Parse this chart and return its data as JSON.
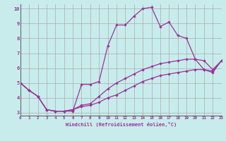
{
  "xlabel": "Windchill (Refroidissement éolien,°C)",
  "xlim": [
    0,
    23
  ],
  "ylim": [
    2.8,
    10.3
  ],
  "yticks": [
    3,
    4,
    5,
    6,
    7,
    8,
    9,
    10
  ],
  "xticks": [
    0,
    1,
    2,
    3,
    4,
    5,
    6,
    7,
    8,
    9,
    10,
    11,
    12,
    13,
    14,
    15,
    16,
    17,
    18,
    19,
    20,
    21,
    22,
    23
  ],
  "background_color": "#c8ecec",
  "line_color": "#993399",
  "grid_color": "#aaaaaa",
  "lines": [
    {
      "x": [
        0,
        1,
        2,
        3,
        4,
        5,
        6,
        7,
        8,
        9,
        10,
        11,
        12,
        13,
        14,
        15,
        16,
        17,
        18,
        19,
        20,
        21,
        22,
        23
      ],
      "y": [
        5.0,
        4.5,
        4.1,
        3.2,
        3.1,
        3.1,
        3.1,
        4.9,
        4.9,
        5.1,
        7.5,
        8.9,
        8.9,
        9.5,
        10.0,
        10.1,
        8.8,
        9.1,
        8.2,
        8.0,
        6.6,
        5.9,
        5.7,
        6.5
      ]
    },
    {
      "x": [
        0,
        1,
        2,
        3,
        4,
        5,
        6,
        7,
        8,
        9,
        10,
        11,
        12,
        13,
        14,
        15,
        16,
        17,
        18,
        19,
        20,
        21,
        22,
        23
      ],
      "y": [
        5.0,
        4.5,
        4.1,
        3.2,
        3.1,
        3.1,
        3.2,
        3.5,
        3.6,
        4.1,
        4.6,
        5.0,
        5.3,
        5.6,
        5.9,
        6.1,
        6.3,
        6.4,
        6.5,
        6.6,
        6.6,
        6.5,
        5.9,
        6.5
      ]
    },
    {
      "x": [
        0,
        1,
        2,
        3,
        4,
        5,
        6,
        7,
        8,
        9,
        10,
        11,
        12,
        13,
        14,
        15,
        16,
        17,
        18,
        19,
        20,
        21,
        22,
        23
      ],
      "y": [
        5.0,
        4.5,
        4.1,
        3.2,
        3.1,
        3.1,
        3.2,
        3.4,
        3.5,
        3.7,
        4.0,
        4.2,
        4.5,
        4.8,
        5.1,
        5.3,
        5.5,
        5.6,
        5.7,
        5.8,
        5.9,
        5.9,
        5.8,
        6.5
      ]
    }
  ]
}
